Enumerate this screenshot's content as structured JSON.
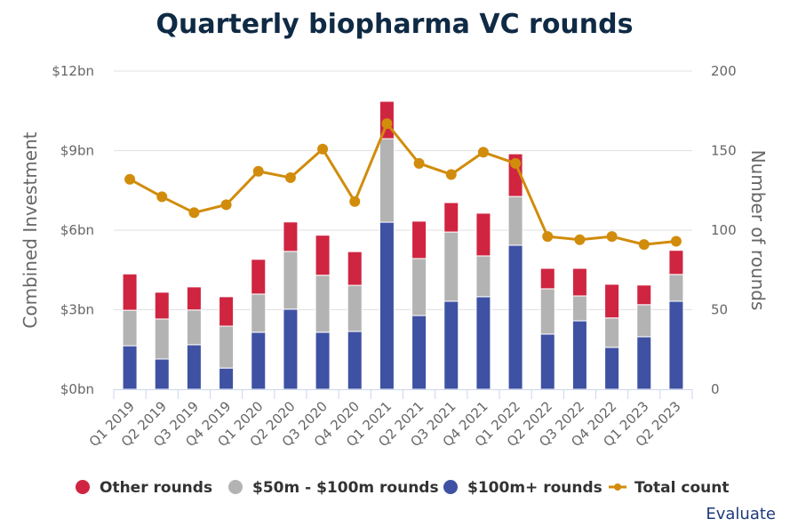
{
  "chart_data": {
    "type": "bar",
    "stacked": true,
    "title": "Quarterly biopharma VC rounds",
    "categories": [
      "Q1 2019",
      "Q2 2019",
      "Q3 2019",
      "Q4 2019",
      "Q1 2020",
      "Q2 2020",
      "Q3 2020",
      "Q4 2020",
      "Q1 2021",
      "Q2 2021",
      "Q3 2021",
      "Q4 2021",
      "Q1 2022",
      "Q2 2022",
      "Q3 2022",
      "Q4 2022",
      "Q1 2023",
      "Q2 2023"
    ],
    "series": [
      {
        "name": "$100m+ rounds",
        "type": "bar",
        "axis": "left",
        "color": "#3f51a3",
        "values": [
          1.64,
          1.14,
          1.68,
          0.8,
          2.15,
          3.02,
          2.15,
          2.18,
          6.3,
          2.78,
          3.32,
          3.49,
          5.43,
          2.08,
          2.58,
          1.58,
          1.98,
          3.32
        ]
      },
      {
        "name": "$50m - $100m rounds",
        "type": "bar",
        "axis": "left",
        "color": "#b3b3b3",
        "values": [
          1.34,
          1.51,
          1.31,
          1.58,
          1.44,
          2.18,
          2.15,
          1.74,
          3.15,
          2.15,
          2.61,
          1.54,
          1.84,
          1.71,
          0.94,
          1.11,
          1.21,
          1.01
        ]
      },
      {
        "name": "Other rounds",
        "type": "bar",
        "axis": "left",
        "color": "#cf2541",
        "values": [
          1.37,
          1.01,
          0.87,
          1.11,
          1.31,
          1.11,
          1.51,
          1.27,
          1.41,
          1.41,
          1.11,
          1.61,
          1.61,
          0.77,
          1.04,
          1.27,
          0.74,
          0.91
        ]
      },
      {
        "name": "Total count",
        "type": "line",
        "axis": "right",
        "color": "#d18c0b",
        "values": [
          132,
          121,
          111,
          116,
          137,
          133,
          151,
          118,
          167,
          142,
          135,
          149,
          142,
          96,
          94,
          96,
          91,
          93
        ]
      }
    ],
    "xlabel": "",
    "ylabel": "Combined Investment",
    "y2label": "Number of rounds",
    "ylim": [
      0,
      12
    ],
    "y2lim": [
      0,
      200
    ],
    "yticks": [
      "$0bn",
      "$3bn",
      "$6bn",
      "$9bn",
      "$12bn"
    ],
    "ytick_values": [
      0,
      3,
      6,
      9,
      12
    ],
    "y2ticks": [
      "0",
      "50",
      "100",
      "150",
      "200"
    ],
    "y2tick_values": [
      0,
      50,
      100,
      150,
      200
    ],
    "grid": true,
    "legend": {
      "placement": "bottom",
      "order": [
        "Other rounds",
        "$50m - $100m rounds",
        "$100m+ rounds",
        "Total count"
      ]
    },
    "source": "Evaluate"
  }
}
